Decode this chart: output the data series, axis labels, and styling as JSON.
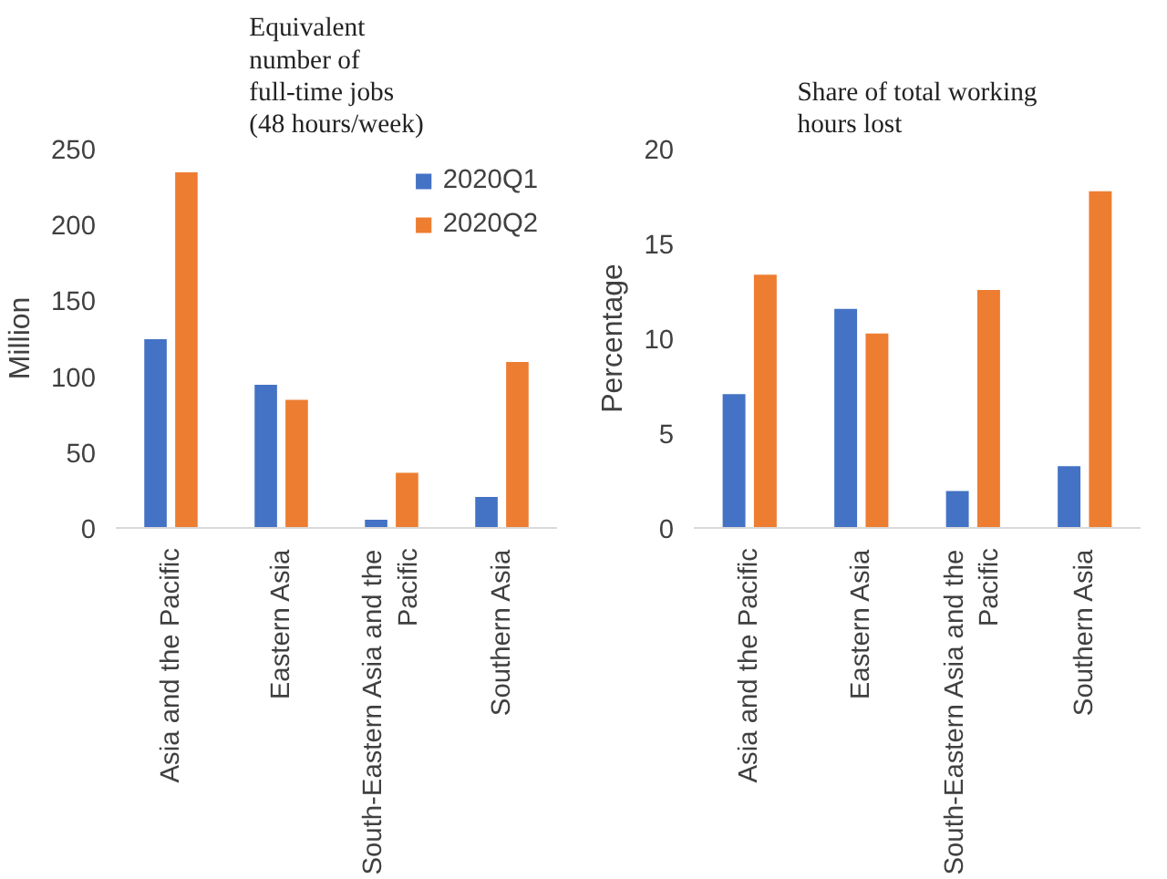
{
  "chart_data": [
    {
      "type": "bar",
      "title": "Equivalent number of full-time jobs (48 hours/week)",
      "ylabel": "Million",
      "categories": [
        "Asia and the Pacific",
        "Eastern Asia",
        "South-Eastern Asia and the Pacific",
        "Southern Asia"
      ],
      "series": [
        {
          "name": "2020Q1",
          "color": "#4472c4",
          "values": [
            125,
            95,
            6,
            21
          ]
        },
        {
          "name": "2020Q2",
          "color": "#ed7d31",
          "values": [
            235,
            85,
            37,
            110
          ]
        }
      ],
      "ylim": [
        0,
        250
      ],
      "yticks": [
        0,
        50,
        100,
        150,
        200,
        250
      ],
      "grid": false,
      "legend": "top right"
    },
    {
      "type": "bar",
      "title": "Share of total working hours lost",
      "ylabel": "Percentage",
      "categories": [
        "Asia and the Pacific",
        "Eastern Asia",
        "South-Eastern Asia and the Pacific",
        "Southern Asia"
      ],
      "series": [
        {
          "color": "#4472c4",
          "values": [
            7.1,
            11.6,
            2.0,
            3.3
          ]
        },
        {
          "color": "#ed7d31",
          "values": [
            13.4,
            10.3,
            12.6,
            17.8
          ]
        }
      ],
      "ylim": [
        0,
        20
      ],
      "yticks": [
        0,
        5,
        10,
        15,
        20
      ],
      "grid": false,
      "legend": false
    }
  ]
}
